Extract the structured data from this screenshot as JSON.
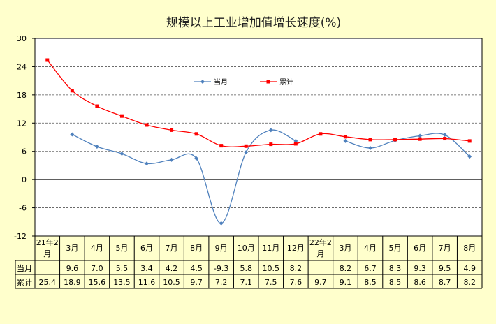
{
  "chart_data": {
    "type": "line",
    "title": "规模以上工业增加值增长速度(%)",
    "categories": [
      [
        "21年2",
        "月"
      ],
      [
        "3月"
      ],
      [
        "4月"
      ],
      [
        "5月"
      ],
      [
        "6月"
      ],
      [
        "7月"
      ],
      [
        "8月"
      ],
      [
        "9月"
      ],
      [
        "10月"
      ],
      [
        "11月"
      ],
      [
        "12月"
      ],
      [
        "22年2",
        "月"
      ],
      [
        "3月"
      ],
      [
        "4月"
      ],
      [
        "5月"
      ],
      [
        "6月"
      ],
      [
        "7月"
      ],
      [
        "8月"
      ]
    ],
    "y_ticks": [
      "30",
      "24",
      "18",
      "12",
      "6",
      "0",
      "-6",
      "-12"
    ],
    "ylim": [
      -12,
      30
    ],
    "legend_position": "top-center",
    "grid": true,
    "series": [
      {
        "name": "当月",
        "color": "#4F81BD",
        "marker": "diamond",
        "values": [
          null,
          9.6,
          7.0,
          5.5,
          3.4,
          4.2,
          4.5,
          -9.3,
          5.8,
          10.5,
          8.2,
          null,
          8.2,
          6.7,
          8.3,
          9.3,
          9.5,
          4.9
        ],
        "labels": [
          "",
          "9.6",
          "7.0",
          "5.5",
          "3.4",
          "4.2",
          "4.5",
          "-9.3",
          "5.8",
          "10.5",
          "8.2",
          "",
          "8.2",
          "6.7",
          "8.3",
          "9.3",
          "9.5",
          "4.9"
        ]
      },
      {
        "name": "累计",
        "color": "#FF0000",
        "marker": "square",
        "values": [
          25.4,
          18.9,
          15.6,
          13.5,
          11.6,
          10.5,
          9.7,
          7.2,
          7.1,
          7.5,
          7.6,
          9.7,
          9.1,
          8.5,
          8.5,
          8.6,
          8.7,
          8.2
        ],
        "labels": [
          "25.4",
          "18.9",
          "15.6",
          "13.5",
          "11.6",
          "10.5",
          "9.7",
          "7.2",
          "7.1",
          "7.5",
          "7.6",
          "9.7",
          "9.1",
          "8.5",
          "8.5",
          "8.6",
          "8.7",
          "8.2"
        ]
      }
    ]
  }
}
